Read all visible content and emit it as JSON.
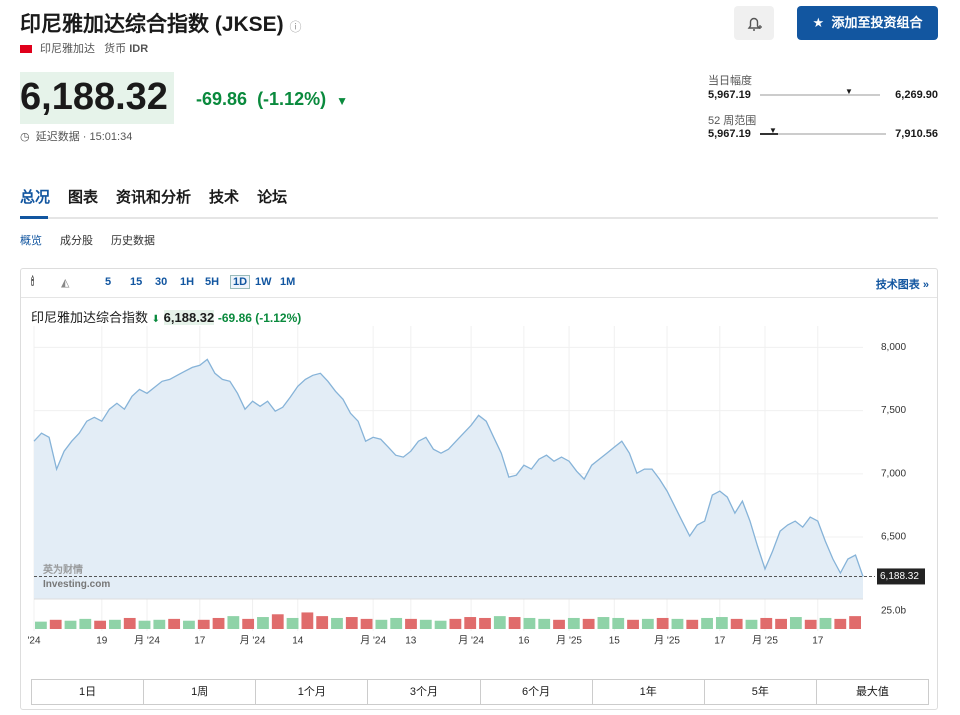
{
  "header": {
    "title": "印尼雅加达综合指数 (JKSE)",
    "country": "印尼雅加达",
    "currency_label": "货币",
    "currency": "IDR",
    "button": "添加至投资组合"
  },
  "quote": {
    "price": "6,188.32",
    "change": "-69.86",
    "change_pct": "(-1.12%)",
    "delay": "延迟数据 · 15:01:34"
  },
  "ranges": {
    "day": {
      "label": "当日幅度",
      "low": "5,967.19",
      "high": "6,269.90"
    },
    "week52": {
      "label": "52 周范围",
      "low": "5,967.19",
      "high": "7,910.56"
    }
  },
  "tabs": [
    "总况",
    "图表",
    "资讯和分析",
    "技术",
    "论坛"
  ],
  "subtabs": [
    "概览",
    "成分股",
    "历史数据"
  ],
  "toolbar": {
    "intervals": [
      "5",
      "15",
      "30",
      "1H",
      "5H",
      "1D",
      "1W",
      "1M"
    ],
    "link": "技术图表 »"
  },
  "periods": [
    "1日",
    "1周",
    "1个月",
    "3个月",
    "6个月",
    "1年",
    "5年",
    "最大值"
  ],
  "chart_data": {
    "type": "area",
    "legend": {
      "name": "印尼雅加达综合指数",
      "price": "6,188.32",
      "change": "-69.86 (-1.12%)"
    },
    "color": "#86b3d8",
    "fill": "#e3edf6",
    "last_label": "6,188.32",
    "values": [
      7258,
      7321,
      7289,
      7037,
      7179,
      7258,
      7321,
      7416,
      7447,
      7416,
      7511,
      7558,
      7511,
      7613,
      7668,
      7637,
      7684,
      7732,
      7747,
      7779,
      7811,
      7842,
      7858,
      7905,
      7795,
      7747,
      7732,
      7637,
      7511,
      7574,
      7534,
      7574,
      7495,
      7526,
      7605,
      7692,
      7747,
      7779,
      7795,
      7732,
      7653,
      7589,
      7479,
      7416,
      7258,
      7289,
      7274,
      7211,
      7147,
      7132,
      7179,
      7258,
      7289,
      7195,
      7163,
      7195,
      7258,
      7321,
      7384,
      7463,
      7416,
      7289,
      7163,
      6974,
      6989,
      7068,
      7037,
      7116,
      7147,
      7100,
      7132,
      7100,
      7021,
      6958,
      7068,
      7116,
      7163,
      7211,
      7258,
      7163,
      7005,
      7037,
      7037,
      6958,
      6863,
      6745,
      6626,
      6508,
      6595,
      6626,
      6832,
      6863,
      6816,
      6689,
      6784,
      6626,
      6429,
      6247,
      6389,
      6547,
      6595,
      6626,
      6579,
      6658,
      6626,
      6468,
      6326,
      6216,
      6326,
      6358,
      6188.32
    ],
    "ylim": [
      6010,
      8090
    ],
    "yticks": [
      {
        "value": 6500,
        "label": "6,500"
      },
      {
        "value": 7000,
        "label": "7,000"
      },
      {
        "value": 7500,
        "label": "7,500"
      },
      {
        "value": 8000,
        "label": "8,000"
      }
    ],
    "xticks": [
      {
        "value": 0,
        "label": "'24"
      },
      {
        "value": 9,
        "label": "19"
      },
      {
        "value": 15,
        "label": "月 '24"
      },
      {
        "value": 22,
        "label": "17"
      },
      {
        "value": 29,
        "label": "月 '24"
      },
      {
        "value": 35,
        "label": "14"
      },
      {
        "value": 45,
        "label": "月 '24"
      },
      {
        "value": 50,
        "label": "13"
      },
      {
        "value": 58,
        "label": "月 '24"
      },
      {
        "value": 65,
        "label": "16"
      },
      {
        "value": 71,
        "label": "月 '25"
      },
      {
        "value": 77,
        "label": "15"
      },
      {
        "value": 84,
        "label": "月 '25"
      },
      {
        "value": 91,
        "label": "17"
      },
      {
        "value": 97,
        "label": "月 '25"
      },
      {
        "value": 104,
        "label": "17"
      }
    ],
    "xlim": [
      0,
      110
    ],
    "volume": {
      "values": [
        8,
        10,
        9,
        11,
        9,
        10,
        12,
        9,
        10,
        11,
        9,
        10,
        12,
        14,
        11,
        13,
        16,
        12,
        18,
        14,
        12,
        13,
        11,
        10,
        12,
        11,
        10,
        9,
        11,
        13,
        12,
        14,
        13,
        12,
        11,
        10,
        12,
        11,
        13,
        12,
        10,
        11,
        12,
        11,
        10,
        12,
        13,
        11,
        10,
        12,
        11,
        13,
        10,
        12,
        11,
        14
      ],
      "colors": [
        "#8fd3a8",
        "#e06c6c",
        "#8fd3a8",
        "#8fd3a8",
        "#e06c6c",
        "#8fd3a8",
        "#e06c6c",
        "#8fd3a8",
        "#8fd3a8",
        "#e06c6c",
        "#8fd3a8",
        "#e06c6c",
        "#e06c6c",
        "#8fd3a8",
        "#e06c6c",
        "#8fd3a8",
        "#e06c6c",
        "#8fd3a8",
        "#e06c6c",
        "#e06c6c",
        "#8fd3a8",
        "#e06c6c",
        "#e06c6c",
        "#8fd3a8",
        "#8fd3a8",
        "#e06c6c",
        "#8fd3a8",
        "#8fd3a8",
        "#e06c6c",
        "#e06c6c",
        "#e06c6c",
        "#8fd3a8",
        "#e06c6c",
        "#8fd3a8",
        "#8fd3a8",
        "#e06c6c",
        "#8fd3a8",
        "#e06c6c",
        "#8fd3a8",
        "#8fd3a8",
        "#e06c6c",
        "#8fd3a8",
        "#e06c6c",
        "#8fd3a8",
        "#e06c6c",
        "#8fd3a8",
        "#8fd3a8",
        "#e06c6c",
        "#8fd3a8",
        "#e06c6c",
        "#e06c6c",
        "#8fd3a8",
        "#e06c6c",
        "#8fd3a8",
        "#e06c6c",
        "#e06c6c"
      ],
      "vlim": [
        0,
        25
      ],
      "vticks": [
        {
          "value": 25,
          "label": "25.0b"
        }
      ]
    }
  }
}
